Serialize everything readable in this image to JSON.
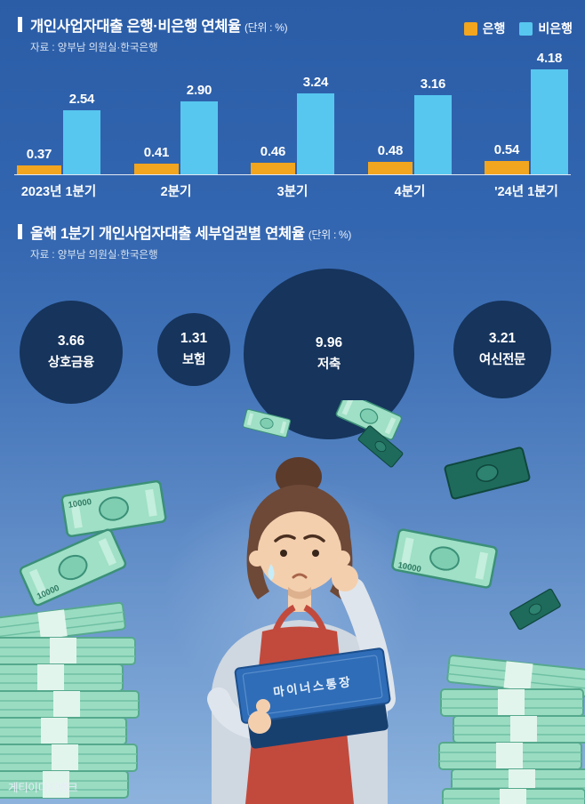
{
  "page": {
    "credit": "게티이미지뱅크",
    "background_top": "#2b5da7",
    "background_bottom": "#8db3dd"
  },
  "chart_data": [
    {
      "type": "bar",
      "title": "개인사업자대출 은행·비은행 연체율",
      "unit_label": "(단위 : %)",
      "source": "자료 : 양부남 의원실·한국은행",
      "categories": [
        "2023년 1분기",
        "2분기",
        "3분기",
        "4분기",
        "'24년 1분기"
      ],
      "series": [
        {
          "name": "은행",
          "color": "#f2a51f",
          "values": [
            0.37,
            0.41,
            0.46,
            0.48,
            0.54
          ],
          "display": [
            "0.37",
            "0.41",
            "0.46",
            "0.48",
            "0.54"
          ]
        },
        {
          "name": "비은행",
          "color": "#57c7f0",
          "values": [
            2.54,
            2.9,
            3.24,
            3.16,
            4.18
          ],
          "display": [
            "2.54",
            "2.90",
            "3.24",
            "3.16",
            "4.18"
          ]
        }
      ],
      "ylim": [
        0,
        4.5
      ],
      "grid": false,
      "legend_position": "top-right"
    },
    {
      "type": "bubble",
      "title": "올해 1분기 개인사업자대출 세부업권별 연체율",
      "unit_label": "(단위 : %)",
      "source": "자료 : 양부남 의원실·한국은행",
      "bubble_color": "#16345c",
      "bubbles": [
        {
          "label": "상호금융",
          "value": 3.66,
          "display": "3.66"
        },
        {
          "label": "보험",
          "value": 1.31,
          "display": "1.31"
        },
        {
          "label": "저축",
          "value": 9.96,
          "display": "9.96"
        },
        {
          "label": "여신전문",
          "value": 3.21,
          "display": "3.21"
        }
      ]
    }
  ],
  "illustration": {
    "bankbook_label": "마이너스통장",
    "banknote_text": "10000"
  }
}
